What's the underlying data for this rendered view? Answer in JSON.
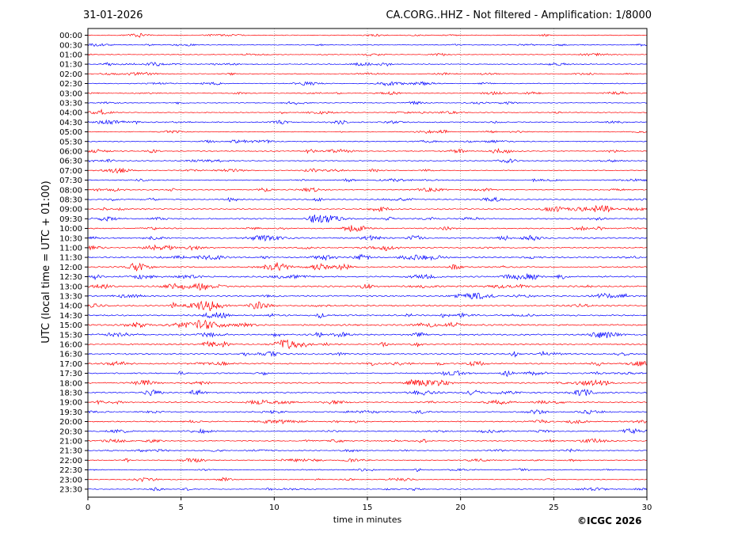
{
  "header": {
    "date": "31-01-2026",
    "title": "CA.CORG..HHZ - Not filtered - Amplification: 1/8000"
  },
  "footer": {
    "copyright": "©ICGC 2026"
  },
  "chart_data": {
    "type": "line",
    "title": "CA.CORG..HHZ - Not filtered - Amplification: 1/8000",
    "xlabel": "time in minutes",
    "ylabel": "UTC (local time = UTC + 01:00)",
    "xlim": [
      0,
      30
    ],
    "x_ticks": [
      0,
      5,
      10,
      15,
      20,
      25,
      30
    ],
    "grid": "vertical dotted lines at x ticks",
    "trace_colors": [
      "#ff0000",
      "#0000ff"
    ],
    "row_labels": [
      "00:00",
      "00:30",
      "01:00",
      "01:30",
      "02:00",
      "02:30",
      "03:00",
      "03:30",
      "04:00",
      "04:30",
      "05:00",
      "05:30",
      "06:00",
      "06:30",
      "07:00",
      "07:30",
      "08:00",
      "08:30",
      "09:00",
      "09:30",
      "10:00",
      "10:30",
      "11:00",
      "11:30",
      "12:00",
      "12:30",
      "13:00",
      "13:30",
      "14:00",
      "14:30",
      "15:00",
      "15:30",
      "16:00",
      "16:30",
      "17:00",
      "17:30",
      "18:00",
      "18:30",
      "19:00",
      "19:30",
      "20:00",
      "20:30",
      "21:00",
      "21:30",
      "22:00",
      "22:30",
      "23:00",
      "23:30"
    ],
    "row_amplitude": [
      0.35,
      0.4,
      0.35,
      0.45,
      0.35,
      0.4,
      0.4,
      0.35,
      0.4,
      0.5,
      0.35,
      0.45,
      0.5,
      0.45,
      0.45,
      0.4,
      0.45,
      0.55,
      0.6,
      0.65,
      0.55,
      0.65,
      0.6,
      0.7,
      0.65,
      0.7,
      0.75,
      0.7,
      0.7,
      0.7,
      0.75,
      0.7,
      0.7,
      0.7,
      0.7,
      0.6,
      0.65,
      0.65,
      0.6,
      0.55,
      0.55,
      0.5,
      0.5,
      0.45,
      0.45,
      0.4,
      0.4,
      0.4
    ]
  }
}
